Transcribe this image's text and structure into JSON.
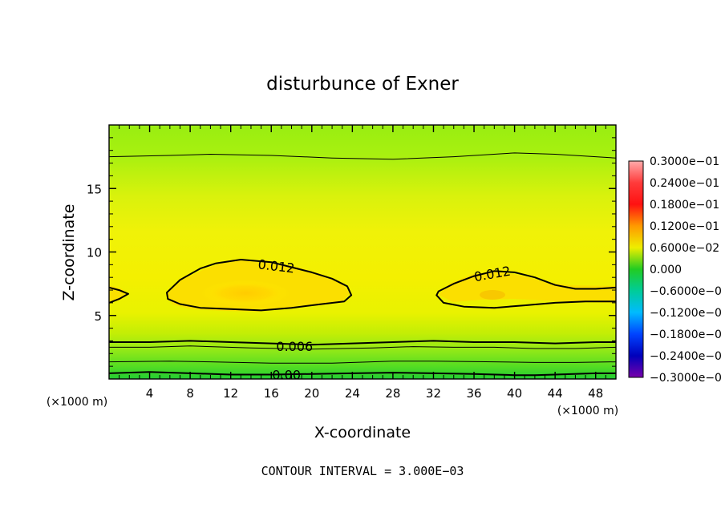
{
  "chart_data": {
    "type": "heatmap",
    "subtype": "filled-contour",
    "title": "disturbunce of Exner",
    "xlabel": "X-coordinate",
    "ylabel": "Z-coordinate",
    "x_unit_label": "(×1000 m)",
    "y_unit_label": "(×1000 m)",
    "footer": "CONTOUR INTERVAL = 3.000E−03",
    "xlim": [
      0,
      50
    ],
    "ylim": [
      0,
      20
    ],
    "x_ticks": [
      4,
      8,
      12,
      16,
      20,
      24,
      28,
      32,
      36,
      40,
      44,
      48
    ],
    "y_ticks": [
      5,
      10,
      15
    ],
    "colorbar": {
      "range": [
        -0.03,
        0.03
      ],
      "labels": [
        "0.3000e−01",
        "0.2400e−01",
        "0.1800e−01",
        "0.1200e−01",
        "0.6000e−02",
        "0.000",
        "−0.6000e−0",
        "−0.1200e−0",
        "−0.1800e−0",
        "−0.2400e−0",
        "−0.3000e−0"
      ]
    },
    "contour_labels": [
      {
        "text": "0.012",
        "x": 16.5,
        "y": 8.9
      },
      {
        "text": "0.012",
        "x": 37.8,
        "y": 8.3
      },
      {
        "text": "0.006",
        "x": 18.3,
        "y": 2.6
      },
      {
        "text": "0.00",
        "x": 17.5,
        "y": 0.35
      }
    ],
    "contours": [
      {
        "level": 0.012,
        "closed": true,
        "points": [
          [
            5.7,
            6.8
          ],
          [
            7,
            7.8
          ],
          [
            9,
            8.7
          ],
          [
            10.5,
            9.1
          ],
          [
            13,
            9.4
          ],
          [
            16,
            9.2
          ],
          [
            18,
            8.8
          ],
          [
            20,
            8.4
          ],
          [
            22,
            7.9
          ],
          [
            23.5,
            7.3
          ],
          [
            23.9,
            6.6
          ],
          [
            23.2,
            6.1
          ],
          [
            21,
            5.9
          ],
          [
            18,
            5.6
          ],
          [
            15,
            5.4
          ],
          [
            12,
            5.5
          ],
          [
            9,
            5.6
          ],
          [
            7,
            5.9
          ],
          [
            5.8,
            6.3
          ]
        ]
      },
      {
        "level": 0.012,
        "closed": false,
        "points": [
          [
            0,
            7.2
          ],
          [
            1,
            7.0
          ],
          [
            1.9,
            6.7
          ],
          [
            1,
            6.3
          ],
          [
            0,
            6.0
          ]
        ]
      },
      {
        "level": 0.012,
        "closed": false,
        "points": [
          [
            50,
            7.2
          ],
          [
            48,
            7.1
          ],
          [
            46,
            7.1
          ],
          [
            44,
            7.4
          ],
          [
            42,
            8.0
          ],
          [
            40,
            8.4
          ],
          [
            38,
            8.5
          ],
          [
            36,
            8.1
          ],
          [
            34,
            7.5
          ],
          [
            32.5,
            6.9
          ],
          [
            32.3,
            6.6
          ],
          [
            33,
            6.0
          ],
          [
            35,
            5.7
          ],
          [
            38,
            5.6
          ],
          [
            41,
            5.8
          ],
          [
            44,
            6.0
          ],
          [
            47,
            6.1
          ],
          [
            50,
            6.1
          ]
        ]
      },
      {
        "level": 0.006,
        "closed": false,
        "points": [
          [
            0,
            2.9
          ],
          [
            4,
            2.9
          ],
          [
            8,
            3.0
          ],
          [
            12,
            2.9
          ],
          [
            16,
            2.8
          ],
          [
            20,
            2.7
          ],
          [
            24,
            2.8
          ],
          [
            28,
            2.9
          ],
          [
            32,
            3.0
          ],
          [
            36,
            2.9
          ],
          [
            40,
            2.9
          ],
          [
            44,
            2.8
          ],
          [
            48,
            2.9
          ],
          [
            50,
            2.9
          ]
        ]
      },
      {
        "level": 0.0,
        "closed": false,
        "points": [
          [
            0,
            0.45
          ],
          [
            4,
            0.55
          ],
          [
            8,
            0.45
          ],
          [
            12,
            0.35
          ],
          [
            16,
            0.35
          ],
          [
            20,
            0.4
          ],
          [
            24,
            0.45
          ],
          [
            28,
            0.5
          ],
          [
            32,
            0.45
          ],
          [
            36,
            0.4
          ],
          [
            40,
            0.3
          ],
          [
            42,
            0.3
          ],
          [
            44,
            0.35
          ],
          [
            48,
            0.45
          ],
          [
            50,
            0.45
          ]
        ]
      },
      {
        "level": 0.0045,
        "closed": false,
        "thin": true,
        "points": [
          [
            0,
            17.5
          ],
          [
            6,
            17.6
          ],
          [
            10,
            17.7
          ],
          [
            16,
            17.6
          ],
          [
            22,
            17.4
          ],
          [
            28,
            17.3
          ],
          [
            34,
            17.5
          ],
          [
            40,
            17.8
          ],
          [
            44,
            17.7
          ],
          [
            48,
            17.5
          ],
          [
            50,
            17.4
          ]
        ]
      },
      {
        "level": 0.0045,
        "closed": false,
        "thin": true,
        "points": [
          [
            0,
            2.5
          ],
          [
            4,
            2.5
          ],
          [
            8,
            2.6
          ],
          [
            14,
            2.45
          ],
          [
            20,
            2.35
          ],
          [
            26,
            2.45
          ],
          [
            30,
            2.55
          ],
          [
            34,
            2.5
          ],
          [
            38,
            2.5
          ],
          [
            42,
            2.4
          ],
          [
            46,
            2.4
          ],
          [
            50,
            2.5
          ]
        ]
      },
      {
        "level": 0.0015,
        "closed": false,
        "thin": true,
        "points": [
          [
            0,
            1.35
          ],
          [
            6,
            1.4
          ],
          [
            10,
            1.35
          ],
          [
            16,
            1.25
          ],
          [
            22,
            1.25
          ],
          [
            28,
            1.4
          ],
          [
            32,
            1.4
          ],
          [
            38,
            1.35
          ],
          [
            42,
            1.3
          ],
          [
            46,
            1.3
          ],
          [
            50,
            1.35
          ]
        ]
      }
    ]
  }
}
